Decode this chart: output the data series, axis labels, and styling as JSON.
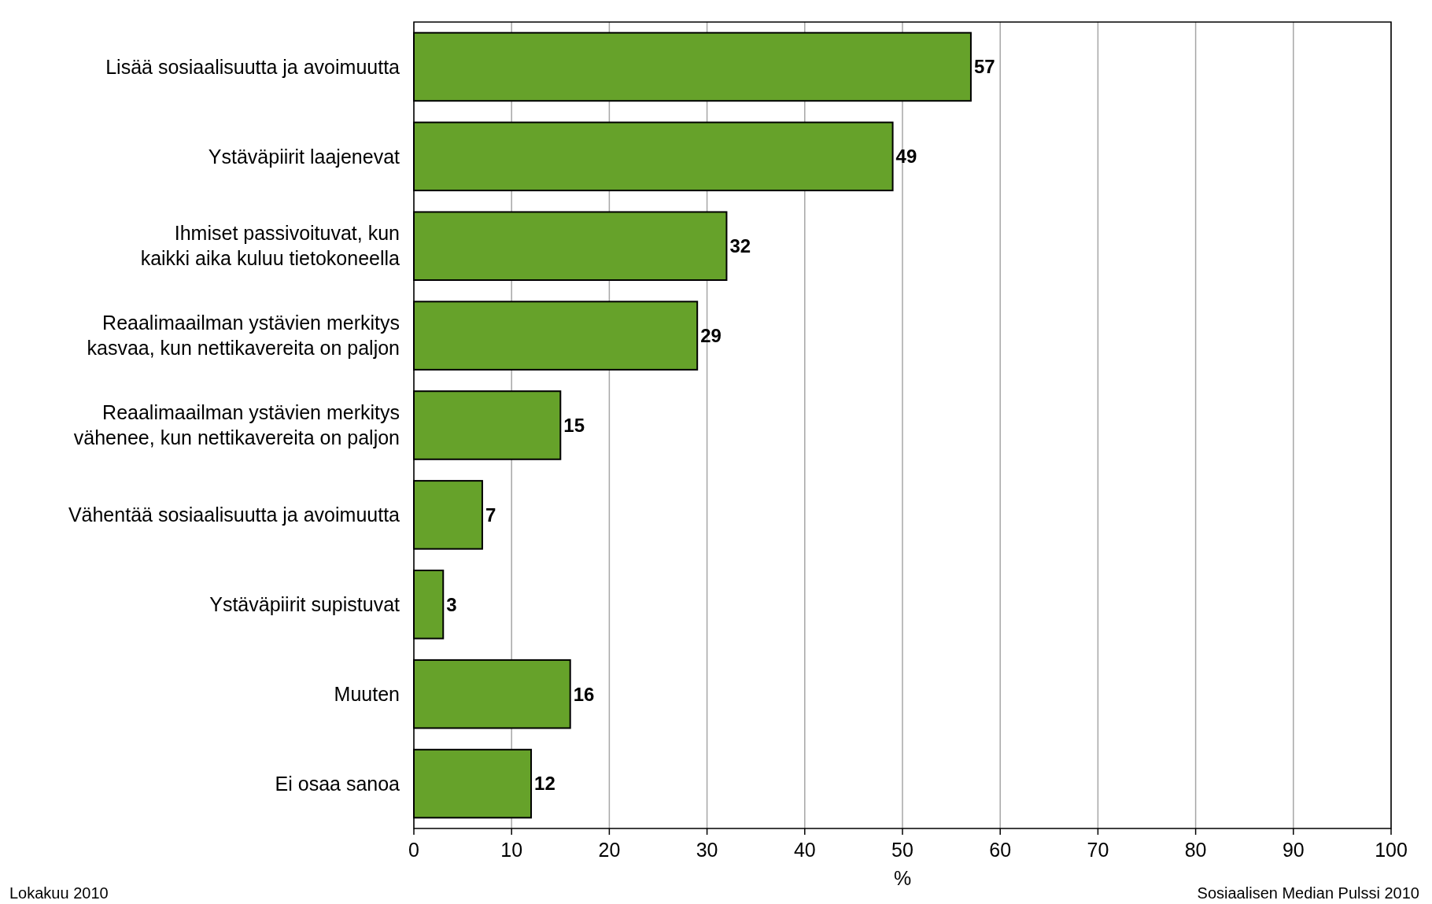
{
  "chart_data": {
    "type": "bar",
    "orientation": "horizontal",
    "xlabel": "%",
    "categories": [
      "Lisää sosiaalisuutta ja avoimuutta",
      "Ystäväpiirit laajenevat",
      "Ihmiset passivoituvat, kun\nkaikki aika kuluu tietokoneella",
      "Reaalimaailman ystävien merkitys\nkasvaa, kun nettikavereita on paljon",
      "Reaalimaailman ystävien merkitys\nvähenee, kun nettikavereita on paljon",
      "Vähentää sosiaalisuutta ja avoimuutta",
      "Ystäväpiirit supistuvat",
      "Muuten",
      "Ei osaa sanoa"
    ],
    "values": [
      57,
      49,
      32,
      29,
      15,
      7,
      3,
      16,
      12
    ],
    "color": "#66a22a",
    "xlim": [
      0,
      100
    ],
    "xticks": [
      0,
      10,
      20,
      30,
      40,
      50,
      60,
      70,
      80,
      90,
      100
    ],
    "grid": "x",
    "data_labels": true,
    "annotations": [
      "Lokakuu 2010",
      "Sosiaalisen Median Pulssi 2010"
    ]
  }
}
